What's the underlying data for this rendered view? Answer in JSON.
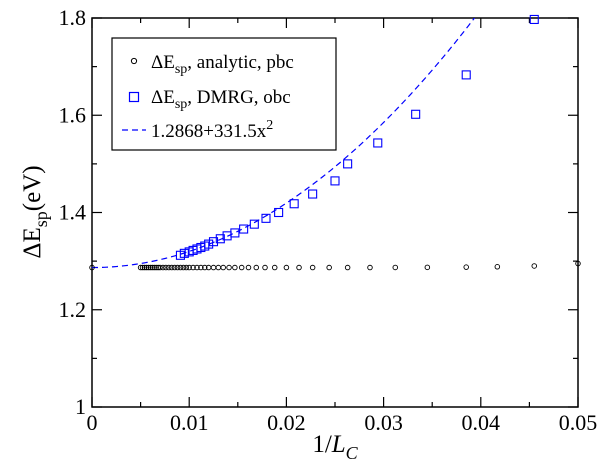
{
  "chart_data": {
    "type": "scatter",
    "xlabel": {
      "base": "1/",
      "var": "L",
      "sub": "C"
    },
    "ylabel": {
      "base": "ΔE",
      "sub": "sp",
      "suffix": "(eV)"
    },
    "xlim": [
      0,
      0.05
    ],
    "ylim": [
      1,
      1.8
    ],
    "xticks": [
      0,
      0.01,
      0.02,
      0.03,
      0.04,
      0.05
    ],
    "xtick_labels": [
      "0",
      "0.01",
      "0.02",
      "0.03",
      "0.04",
      "0.05"
    ],
    "yticks": [
      1.0,
      1.2,
      1.4,
      1.6,
      1.8
    ],
    "ytick_labels": [
      "1",
      "1.2",
      "1.4",
      "1.6",
      "1.8"
    ],
    "grid": false,
    "legend_position": "top-left",
    "series": [
      {
        "name": "analytic, pbc",
        "legend": {
          "prefix": "ΔE",
          "sub": "sp",
          "rest": ", analytic, pbc"
        },
        "marker": "circle",
        "color": "#000000",
        "x": [
          0.0,
          0.005,
          0.0052,
          0.0054,
          0.0056,
          0.0058,
          0.006,
          0.0062,
          0.0064,
          0.0066,
          0.0068,
          0.007,
          0.0073,
          0.0076,
          0.0079,
          0.0082,
          0.0085,
          0.0088,
          0.0091,
          0.0094,
          0.0097,
          0.01,
          0.0104,
          0.0108,
          0.0112,
          0.0116,
          0.012,
          0.0125,
          0.013,
          0.0135,
          0.0141,
          0.0147,
          0.0154,
          0.0161,
          0.0169,
          0.0178,
          0.0188,
          0.02,
          0.0213,
          0.0227,
          0.0244,
          0.0263,
          0.0286,
          0.0312,
          0.0345,
          0.0385,
          0.0417,
          0.0455,
          0.05
        ],
        "y": [
          1.2868,
          1.2868,
          1.2868,
          1.2868,
          1.2868,
          1.2868,
          1.2868,
          1.2868,
          1.2868,
          1.2868,
          1.2868,
          1.2868,
          1.2868,
          1.2868,
          1.2868,
          1.2868,
          1.2868,
          1.2868,
          1.2868,
          1.2868,
          1.2868,
          1.2868,
          1.2868,
          1.2868,
          1.2868,
          1.2868,
          1.2868,
          1.2868,
          1.2868,
          1.2868,
          1.2868,
          1.2868,
          1.2868,
          1.2868,
          1.2868,
          1.2868,
          1.2868,
          1.2868,
          1.2868,
          1.2868,
          1.2868,
          1.2868,
          1.2868,
          1.287,
          1.2872,
          1.2876,
          1.2884,
          1.29,
          1.295
        ]
      },
      {
        "name": "DMRG, obc",
        "legend": {
          "prefix": "ΔE",
          "sub": "sp",
          "rest": ", DMRG, obc"
        },
        "marker": "square",
        "color": "#0000ff",
        "x": [
          0.0091,
          0.0095,
          0.01,
          0.0104,
          0.0108,
          0.0112,
          0.0116,
          0.012,
          0.0125,
          0.0132,
          0.0139,
          0.0147,
          0.0156,
          0.0167,
          0.0179,
          0.0192,
          0.0208,
          0.0227,
          0.025,
          0.0263,
          0.0294,
          0.0333,
          0.0385,
          0.0455
        ],
        "y": [
          1.312,
          1.316,
          1.319,
          1.322,
          1.325,
          1.328,
          1.331,
          1.335,
          1.34,
          1.346,
          1.352,
          1.358,
          1.366,
          1.376,
          1.388,
          1.4,
          1.418,
          1.438,
          1.465,
          1.5,
          1.543,
          1.602,
          1.683,
          1.797
        ]
      }
    ],
    "fit": {
      "name": "1.2868+331.5x^2",
      "legend": {
        "base": "1.2868+331.5x",
        "sup": "2"
      },
      "a": 1.2868,
      "b": 331.5,
      "style": "dashed",
      "color": "#0000ff"
    }
  }
}
